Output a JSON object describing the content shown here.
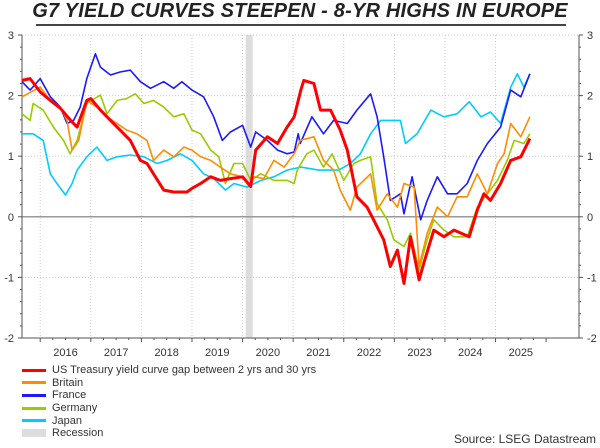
{
  "chart_data": {
    "type": "line",
    "title": "G7 YIELD CURVES STEEPEN - 8-YR HIGHS IN EUROPE",
    "xlabel": "",
    "ylabel": "",
    "xlim": [
      2015.64,
      2026.65
    ],
    "ylim": [
      -2,
      3
    ],
    "yticks": [
      3,
      2,
      1,
      0,
      -1,
      -2
    ],
    "xtick_labels": [
      "2016",
      "2017",
      "2018",
      "2019",
      "2020",
      "2021",
      "2022",
      "2023",
      "2024",
      "2025"
    ],
    "grid": true,
    "zero_line": true,
    "legend_placement": "bottom-left",
    "recession": {
      "name": "Recession",
      "color": "#dddddd",
      "start": 2020.06,
      "end": 2020.2
    },
    "series": [
      {
        "name": "US Treasury yield curve gap between 2 yrs and 30 yrs",
        "color": "#ff0000",
        "points": [
          [
            2015.64,
            2.25
          ],
          [
            2015.8,
            2.28
          ],
          [
            2016.0,
            2.06
          ],
          [
            2016.2,
            1.92
          ],
          [
            2016.4,
            1.79
          ],
          [
            2016.6,
            1.59
          ],
          [
            2016.73,
            1.48
          ],
          [
            2016.92,
            1.92
          ],
          [
            2017.0,
            1.95
          ],
          [
            2017.19,
            1.76
          ],
          [
            2017.39,
            1.59
          ],
          [
            2017.58,
            1.43
          ],
          [
            2017.78,
            1.26
          ],
          [
            2017.98,
            0.93
          ],
          [
            2018.11,
            0.88
          ],
          [
            2018.24,
            0.71
          ],
          [
            2018.44,
            0.44
          ],
          [
            2018.64,
            0.41
          ],
          [
            2018.9,
            0.41
          ],
          [
            2019.0,
            0.47
          ],
          [
            2019.17,
            0.55
          ],
          [
            2019.37,
            0.66
          ],
          [
            2019.56,
            0.6
          ],
          [
            2019.76,
            0.63
          ],
          [
            2020.0,
            0.66
          ],
          [
            2020.16,
            0.5
          ],
          [
            2020.26,
            1.1
          ],
          [
            2020.49,
            1.32
          ],
          [
            2020.69,
            1.21
          ],
          [
            2020.88,
            1.48
          ],
          [
            2021.02,
            1.65
          ],
          [
            2021.15,
            2.09
          ],
          [
            2021.21,
            2.25
          ],
          [
            2021.41,
            2.2
          ],
          [
            2021.54,
            1.76
          ],
          [
            2021.74,
            1.76
          ],
          [
            2021.93,
            1.43
          ],
          [
            2022.07,
            1.1
          ],
          [
            2022.26,
            0.33
          ],
          [
            2022.46,
            0.16
          ],
          [
            2022.59,
            -0.05
          ],
          [
            2022.79,
            -0.38
          ],
          [
            2022.92,
            -0.82
          ],
          [
            2023.06,
            -0.55
          ],
          [
            2023.19,
            -1.1
          ],
          [
            2023.32,
            -0.33
          ],
          [
            2023.49,
            -1.04
          ],
          [
            2023.58,
            -0.77
          ],
          [
            2023.78,
            -0.22
          ],
          [
            2023.98,
            -0.33
          ],
          [
            2024.18,
            -0.22
          ],
          [
            2024.48,
            -0.33
          ],
          [
            2024.64,
            0.11
          ],
          [
            2024.77,
            0.38
          ],
          [
            2024.9,
            0.27
          ],
          [
            2025.1,
            0.55
          ],
          [
            2025.3,
            0.93
          ],
          [
            2025.5,
            0.99
          ],
          [
            2025.68,
            1.29
          ]
        ]
      },
      {
        "name": "Britain",
        "color": "#ff8c00",
        "points": [
          [
            2015.64,
            1.98
          ],
          [
            2016.0,
            2.14
          ],
          [
            2016.2,
            1.92
          ],
          [
            2016.4,
            1.81
          ],
          [
            2016.53,
            1.59
          ],
          [
            2016.63,
            1.1
          ],
          [
            2016.76,
            1.26
          ],
          [
            2016.92,
            1.92
          ],
          [
            2017.12,
            1.81
          ],
          [
            2017.32,
            1.65
          ],
          [
            2017.52,
            1.54
          ],
          [
            2017.71,
            1.43
          ],
          [
            2017.91,
            1.37
          ],
          [
            2018.11,
            1.26
          ],
          [
            2018.24,
            0.93
          ],
          [
            2018.44,
            1.1
          ],
          [
            2018.64,
            0.99
          ],
          [
            2018.84,
            1.15
          ],
          [
            2019.0,
            1.1
          ],
          [
            2019.17,
            0.99
          ],
          [
            2019.37,
            0.93
          ],
          [
            2019.56,
            0.82
          ],
          [
            2019.76,
            0.71
          ],
          [
            2020.0,
            0.66
          ],
          [
            2020.16,
            0.49
          ],
          [
            2020.22,
            0.66
          ],
          [
            2020.42,
            0.63
          ],
          [
            2020.62,
            0.93
          ],
          [
            2020.82,
            0.82
          ],
          [
            2021.02,
            1.04
          ],
          [
            2021.14,
            1.26
          ],
          [
            2021.41,
            1.32
          ],
          [
            2021.6,
            0.93
          ],
          [
            2021.8,
            0.77
          ],
          [
            2021.93,
            0.44
          ],
          [
            2022.13,
            0.11
          ],
          [
            2022.26,
            0.49
          ],
          [
            2022.53,
            0.71
          ],
          [
            2022.66,
            0.11
          ],
          [
            2022.86,
            0.38
          ],
          [
            2023.06,
            0.16
          ],
          [
            2023.19,
            0.55
          ],
          [
            2023.39,
            0.49
          ],
          [
            2023.49,
            -0.82
          ],
          [
            2023.65,
            -0.27
          ],
          [
            2023.85,
            0.16
          ],
          [
            2024.05,
            0.0
          ],
          [
            2024.24,
            0.33
          ],
          [
            2024.44,
            0.33
          ],
          [
            2024.64,
            0.71
          ],
          [
            2024.84,
            0.38
          ],
          [
            2025.04,
            0.88
          ],
          [
            2025.17,
            1.04
          ],
          [
            2025.3,
            1.54
          ],
          [
            2025.5,
            1.32
          ],
          [
            2025.68,
            1.65
          ]
        ]
      },
      {
        "name": "France",
        "color": "#1a1aff",
        "points": [
          [
            2015.64,
            2.23
          ],
          [
            2015.8,
            2.09
          ],
          [
            2016.0,
            2.28
          ],
          [
            2016.2,
            1.98
          ],
          [
            2016.4,
            1.81
          ],
          [
            2016.53,
            1.54
          ],
          [
            2016.66,
            1.59
          ],
          [
            2016.79,
            1.81
          ],
          [
            2016.92,
            2.28
          ],
          [
            2017.09,
            2.69
          ],
          [
            2017.19,
            2.47
          ],
          [
            2017.39,
            2.34
          ],
          [
            2017.58,
            2.39
          ],
          [
            2017.78,
            2.42
          ],
          [
            2017.98,
            2.23
          ],
          [
            2018.18,
            2.12
          ],
          [
            2018.44,
            2.23
          ],
          [
            2018.64,
            2.12
          ],
          [
            2018.8,
            2.23
          ],
          [
            2019.0,
            2.09
          ],
          [
            2019.23,
            1.98
          ],
          [
            2019.43,
            1.65
          ],
          [
            2019.6,
            1.26
          ],
          [
            2019.76,
            1.4
          ],
          [
            2020.0,
            1.51
          ],
          [
            2020.16,
            1.15
          ],
          [
            2020.26,
            1.4
          ],
          [
            2020.49,
            1.26
          ],
          [
            2020.69,
            1.1
          ],
          [
            2020.88,
            1.04
          ],
          [
            2021.02,
            1.07
          ],
          [
            2021.1,
            1.37
          ],
          [
            2021.14,
            1.21
          ],
          [
            2021.37,
            1.65
          ],
          [
            2021.6,
            1.37
          ],
          [
            2021.8,
            1.59
          ],
          [
            2022.07,
            1.54
          ],
          [
            2022.26,
            1.76
          ],
          [
            2022.53,
            2.03
          ],
          [
            2022.66,
            1.65
          ],
          [
            2022.79,
            0.99
          ],
          [
            2022.92,
            0.27
          ],
          [
            2023.12,
            0.38
          ],
          [
            2023.19,
            0.05
          ],
          [
            2023.35,
            0.66
          ],
          [
            2023.52,
            -0.05
          ],
          [
            2023.65,
            0.27
          ],
          [
            2023.85,
            0.66
          ],
          [
            2024.05,
            0.38
          ],
          [
            2024.24,
            0.38
          ],
          [
            2024.44,
            0.55
          ],
          [
            2024.64,
            0.93
          ],
          [
            2024.84,
            1.21
          ],
          [
            2025.1,
            1.48
          ],
          [
            2025.3,
            2.09
          ],
          [
            2025.5,
            1.98
          ],
          [
            2025.68,
            2.36
          ]
        ]
      },
      {
        "name": "Germany",
        "color": "#99cc00",
        "points": [
          [
            2015.64,
            1.7
          ],
          [
            2015.8,
            1.59
          ],
          [
            2015.86,
            1.87
          ],
          [
            2016.06,
            1.76
          ],
          [
            2016.26,
            1.48
          ],
          [
            2016.46,
            1.26
          ],
          [
            2016.59,
            1.04
          ],
          [
            2016.73,
            1.26
          ],
          [
            2016.92,
            1.87
          ],
          [
            2017.19,
            2.01
          ],
          [
            2017.32,
            1.7
          ],
          [
            2017.52,
            1.92
          ],
          [
            2017.71,
            1.95
          ],
          [
            2017.88,
            2.03
          ],
          [
            2018.05,
            1.87
          ],
          [
            2018.24,
            1.92
          ],
          [
            2018.44,
            1.81
          ],
          [
            2018.64,
            1.65
          ],
          [
            2018.84,
            1.7
          ],
          [
            2019.0,
            1.43
          ],
          [
            2019.17,
            1.37
          ],
          [
            2019.37,
            1.1
          ],
          [
            2019.53,
            0.99
          ],
          [
            2019.66,
            0.55
          ],
          [
            2019.83,
            0.88
          ],
          [
            2020.0,
            0.88
          ],
          [
            2020.16,
            0.6
          ],
          [
            2020.36,
            0.71
          ],
          [
            2020.62,
            0.6
          ],
          [
            2020.88,
            0.6
          ],
          [
            2021.02,
            0.55
          ],
          [
            2021.08,
            0.77
          ],
          [
            2021.27,
            1.04
          ],
          [
            2021.41,
            1.1
          ],
          [
            2021.6,
            0.82
          ],
          [
            2021.77,
            1.04
          ],
          [
            2022.0,
            0.6
          ],
          [
            2022.2,
            0.88
          ],
          [
            2022.33,
            0.93
          ],
          [
            2022.53,
            0.99
          ],
          [
            2022.66,
            0.22
          ],
          [
            2022.86,
            -0.05
          ],
          [
            2022.99,
            -0.38
          ],
          [
            2023.19,
            -0.49
          ],
          [
            2023.32,
            -0.27
          ],
          [
            2023.49,
            -0.88
          ],
          [
            2023.65,
            -0.38
          ],
          [
            2023.78,
            -0.05
          ],
          [
            2023.98,
            -0.22
          ],
          [
            2024.18,
            -0.33
          ],
          [
            2024.44,
            -0.33
          ],
          [
            2024.64,
            0.16
          ],
          [
            2024.84,
            0.38
          ],
          [
            2025.04,
            0.6
          ],
          [
            2025.23,
            0.93
          ],
          [
            2025.37,
            1.26
          ],
          [
            2025.56,
            1.21
          ],
          [
            2025.68,
            1.37
          ]
        ]
      },
      {
        "name": "Japan",
        "color": "#00ccff",
        "points": [
          [
            2015.64,
            1.37
          ],
          [
            2015.86,
            1.37
          ],
          [
            2016.06,
            1.26
          ],
          [
            2016.2,
            0.71
          ],
          [
            2016.33,
            0.55
          ],
          [
            2016.5,
            0.36
          ],
          [
            2016.63,
            0.55
          ],
          [
            2016.73,
            0.77
          ],
          [
            2016.92,
            0.99
          ],
          [
            2017.12,
            1.15
          ],
          [
            2017.32,
            0.93
          ],
          [
            2017.52,
            0.99
          ],
          [
            2017.78,
            1.02
          ],
          [
            2018.05,
            0.99
          ],
          [
            2018.31,
            0.88
          ],
          [
            2018.51,
            0.93
          ],
          [
            2018.77,
            1.04
          ],
          [
            2019.0,
            0.93
          ],
          [
            2019.23,
            0.71
          ],
          [
            2019.43,
            0.63
          ],
          [
            2019.66,
            0.44
          ],
          [
            2019.83,
            0.55
          ],
          [
            2020.09,
            0.49
          ],
          [
            2020.36,
            0.6
          ],
          [
            2020.62,
            0.66
          ],
          [
            2020.88,
            0.77
          ],
          [
            2021.15,
            0.82
          ],
          [
            2021.5,
            0.77
          ],
          [
            2021.9,
            0.77
          ],
          [
            2022.13,
            0.88
          ],
          [
            2022.33,
            1.04
          ],
          [
            2022.53,
            1.37
          ],
          [
            2022.73,
            1.59
          ],
          [
            2022.92,
            1.59
          ],
          [
            2023.12,
            1.59
          ],
          [
            2023.22,
            1.21
          ],
          [
            2023.45,
            1.37
          ],
          [
            2023.72,
            1.76
          ],
          [
            2023.98,
            1.65
          ],
          [
            2024.24,
            1.7
          ],
          [
            2024.48,
            1.9
          ],
          [
            2024.71,
            1.65
          ],
          [
            2024.9,
            1.73
          ],
          [
            2025.1,
            1.54
          ],
          [
            2025.3,
            2.14
          ],
          [
            2025.43,
            2.36
          ],
          [
            2025.56,
            2.14
          ],
          [
            2025.68,
            2.36
          ]
        ]
      }
    ],
    "source": "Source: LSEG Datastream"
  }
}
